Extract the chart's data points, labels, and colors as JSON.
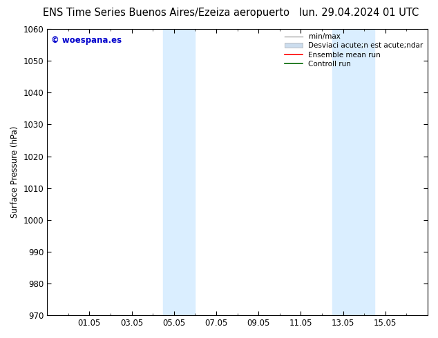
{
  "title_left": "ENS Time Series Buenos Aires/Ezeiza aeropuerto",
  "title_right": "lun. 29.04.2024 01 UTC",
  "ylabel": "Surface Pressure (hPa)",
  "ylim": [
    970,
    1060
  ],
  "yticks": [
    970,
    980,
    990,
    1000,
    1010,
    1020,
    1030,
    1040,
    1050,
    1060
  ],
  "xtick_labels": [
    "01.05",
    "03.05",
    "05.05",
    "07.05",
    "09.05",
    "11.05",
    "13.05",
    "15.05"
  ],
  "xtick_positions": [
    2,
    4,
    6,
    8,
    10,
    12,
    14,
    16
  ],
  "xlim": [
    0,
    18
  ],
  "watermark": "© woespana.es",
  "watermark_color": "#0000cc",
  "bg_color": "#ffffff",
  "plot_bg_color": "#ffffff",
  "shaded_regions": [
    {
      "x_start": 5.5,
      "x_end": 7.0,
      "color": "#daeeff"
    },
    {
      "x_start": 13.5,
      "x_end": 15.5,
      "color": "#daeeff"
    }
  ],
  "legend_line1_label": "min/max",
  "legend_line1_color": "#aaaaaa",
  "legend_line2_label": "Desviaci acute;n est acute;ndar",
  "legend_line2_color": "#ccddee",
  "legend_line3_label": "Ensemble mean run",
  "legend_line3_color": "#ff0000",
  "legend_line4_label": "Controll run",
  "legend_line4_color": "#006600",
  "title_fontsize": 10.5,
  "tick_fontsize": 8.5,
  "legend_fontsize": 7.5
}
